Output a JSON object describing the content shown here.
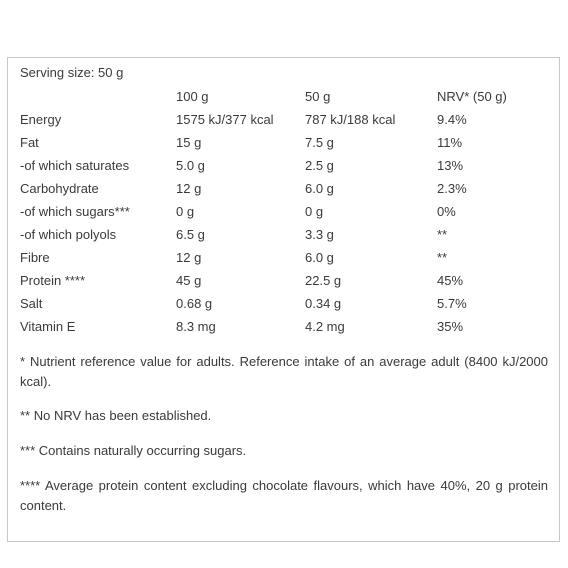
{
  "serving_size": "Serving size: 50 g",
  "table": {
    "header": [
      "100 g",
      "50 g",
      "NRV* (50 g)"
    ],
    "rows": [
      [
        "Energy",
        "1575 kJ/377 kcal",
        "787 kJ/188 kcal",
        "9.4%"
      ],
      [
        "Fat",
        "15 g",
        "7.5 g",
        "11%"
      ],
      [
        "-of which saturates",
        "5.0 g",
        "2.5 g",
        "13%"
      ],
      [
        "Carbohydrate",
        "12 g",
        "6.0 g",
        "2.3%"
      ],
      [
        "-of which sugars***",
        "0 g",
        "0 g",
        "0%"
      ],
      [
        "-of which polyols",
        "6.5 g",
        "3.3 g",
        "**"
      ],
      [
        "Fibre",
        "12 g",
        "6.0 g",
        "**"
      ],
      [
        "Protein ****",
        "45 g",
        "22.5 g",
        "45%"
      ],
      [
        "Salt",
        "0.68 g",
        "0.34 g",
        "5.7%"
      ],
      [
        "Vitamin E",
        "8.3 mg",
        "4.2 mg",
        "35%"
      ]
    ]
  },
  "footnotes": [
    "* Nutrient reference value for adults. Reference intake of an average adult (8400 kJ/2000 kcal).",
    "** No NRV has been established.",
    "*** Contains naturally occurring sugars.",
    "**** Average protein content excluding chocolate flavours, which have 40%, 20 g protein content."
  ]
}
